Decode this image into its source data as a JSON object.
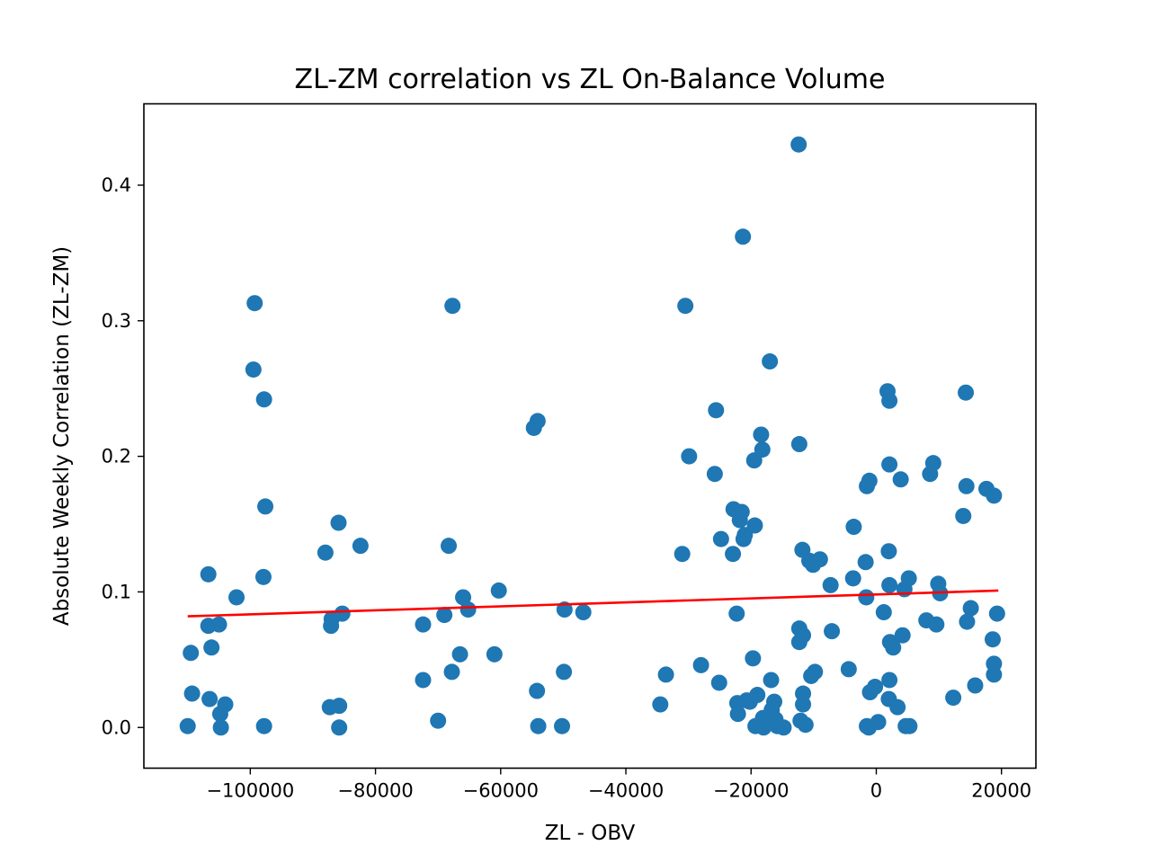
{
  "chart_data": {
    "type": "scatter",
    "title": "ZL-ZM correlation vs ZL On-Balance Volume",
    "xlabel": "ZL - OBV",
    "ylabel": "Absolute Weekly Correlation (ZL-ZM)",
    "xlim": [
      -117000,
      25500
    ],
    "ylim": [
      -0.03,
      0.46
    ],
    "xticks": [
      -100000,
      -80000,
      -60000,
      -40000,
      -20000,
      0,
      20000
    ],
    "xtick_labels": [
      "−100000",
      "−80000",
      "−60000",
      "−40000",
      "−20000",
      "0",
      "20000"
    ],
    "yticks": [
      0.0,
      0.1,
      0.2,
      0.3,
      0.4
    ],
    "ytick_labels": [
      "0.0",
      "0.1",
      "0.2",
      "0.3",
      "0.4"
    ],
    "grid": false,
    "marker_color": "#1f77b4",
    "trendline_color": "#ff0000",
    "trendline": {
      "x": [
        -110000,
        19500
      ],
      "y": [
        0.082,
        0.101
      ]
    },
    "points": [
      [
        -110000,
        0.001
      ],
      [
        -109500,
        0.055
      ],
      [
        -109300,
        0.025
      ],
      [
        -106700,
        0.113
      ],
      [
        -106700,
        0.075
      ],
      [
        -106500,
        0.021
      ],
      [
        -106200,
        0.059
      ],
      [
        -105000,
        0.076
      ],
      [
        -104800,
        0.01
      ],
      [
        -104700,
        0.0
      ],
      [
        -104000,
        0.017
      ],
      [
        -102200,
        0.096
      ],
      [
        -99300,
        0.313
      ],
      [
        -99500,
        0.264
      ],
      [
        -97800,
        0.242
      ],
      [
        -97600,
        0.163
      ],
      [
        -97900,
        0.111
      ],
      [
        -97800,
        0.001
      ],
      [
        -88000,
        0.129
      ],
      [
        -87300,
        0.015
      ],
      [
        -87100,
        0.075
      ],
      [
        -87000,
        0.08
      ],
      [
        -85900,
        0.151
      ],
      [
        -85800,
        0.016
      ],
      [
        -85800,
        0.0
      ],
      [
        -85300,
        0.084
      ],
      [
        -82400,
        0.134
      ],
      [
        -72400,
        0.076
      ],
      [
        -72400,
        0.035
      ],
      [
        -70000,
        0.005
      ],
      [
        -69000,
        0.083
      ],
      [
        -68300,
        0.134
      ],
      [
        -67700,
        0.311
      ],
      [
        -67800,
        0.041
      ],
      [
        -66500,
        0.054
      ],
      [
        -66000,
        0.096
      ],
      [
        -65200,
        0.087
      ],
      [
        -61000,
        0.054
      ],
      [
        -60300,
        0.101
      ],
      [
        -54700,
        0.221
      ],
      [
        -54100,
        0.226
      ],
      [
        -54200,
        0.027
      ],
      [
        -54000,
        0.001
      ],
      [
        -50200,
        0.001
      ],
      [
        -49900,
        0.041
      ],
      [
        -49800,
        0.087
      ],
      [
        -46800,
        0.085
      ],
      [
        -34500,
        0.017
      ],
      [
        -33600,
        0.039
      ],
      [
        -31000,
        0.128
      ],
      [
        -30500,
        0.311
      ],
      [
        -29900,
        0.2
      ],
      [
        -28000,
        0.046
      ],
      [
        -25800,
        0.187
      ],
      [
        -25600,
        0.234
      ],
      [
        -25100,
        0.033
      ],
      [
        -24800,
        0.139
      ],
      [
        -22900,
        0.128
      ],
      [
        -22800,
        0.161
      ],
      [
        -22300,
        0.084
      ],
      [
        -22200,
        0.018
      ],
      [
        -22100,
        0.01
      ],
      [
        -21800,
        0.153
      ],
      [
        -21500,
        0.159
      ],
      [
        -21200,
        0.139
      ],
      [
        -21300,
        0.362
      ],
      [
        -21000,
        0.142
      ],
      [
        -20700,
        0.02
      ],
      [
        -20200,
        0.019
      ],
      [
        -19700,
        0.051
      ],
      [
        -19500,
        0.197
      ],
      [
        -19400,
        0.149
      ],
      [
        -19300,
        0.001
      ],
      [
        -19000,
        0.024
      ],
      [
        -18400,
        0.216
      ],
      [
        -18200,
        0.205
      ],
      [
        -18100,
        0.007
      ],
      [
        -18000,
        0.0
      ],
      [
        -17600,
        0.005
      ],
      [
        -17000,
        0.27
      ],
      [
        -16800,
        0.035
      ],
      [
        -16700,
        0.013
      ],
      [
        -16500,
        0.003
      ],
      [
        -16300,
        0.019
      ],
      [
        -16100,
        0.006
      ],
      [
        -15800,
        0.001
      ],
      [
        -14800,
        0.0
      ],
      [
        -12400,
        0.43
      ],
      [
        -12300,
        0.209
      ],
      [
        -12300,
        0.073
      ],
      [
        -12300,
        0.063
      ],
      [
        -12100,
        0.005
      ],
      [
        -11800,
        0.131
      ],
      [
        -11700,
        0.068
      ],
      [
        -11700,
        0.025
      ],
      [
        -11700,
        0.017
      ],
      [
        -11300,
        0.002
      ],
      [
        -10700,
        0.123
      ],
      [
        -10400,
        0.038
      ],
      [
        -10100,
        0.12
      ],
      [
        -9800,
        0.041
      ],
      [
        -9000,
        0.124
      ],
      [
        -7300,
        0.105
      ],
      [
        -7100,
        0.071
      ],
      [
        -4400,
        0.043
      ],
      [
        -3600,
        0.148
      ],
      [
        -3700,
        0.11
      ],
      [
        -1700,
        0.122
      ],
      [
        -1600,
        0.096
      ],
      [
        -1500,
        0.178
      ],
      [
        -1100,
        0.182
      ],
      [
        -1500,
        0.001
      ],
      [
        -1200,
        0.0
      ],
      [
        -1000,
        0.026
      ],
      [
        -200,
        0.03
      ],
      [
        300,
        0.004
      ],
      [
        1200,
        0.085
      ],
      [
        1800,
        0.248
      ],
      [
        2000,
        0.13
      ],
      [
        2100,
        0.241
      ],
      [
        2100,
        0.194
      ],
      [
        2100,
        0.105
      ],
      [
        2200,
        0.063
      ],
      [
        2100,
        0.035
      ],
      [
        2000,
        0.021
      ],
      [
        2700,
        0.059
      ],
      [
        3400,
        0.015
      ],
      [
        3900,
        0.183
      ],
      [
        4200,
        0.068
      ],
      [
        4500,
        0.102
      ],
      [
        4700,
        0.001
      ],
      [
        5200,
        0.11
      ],
      [
        5300,
        0.001
      ],
      [
        8000,
        0.079
      ],
      [
        8600,
        0.187
      ],
      [
        9100,
        0.195
      ],
      [
        9600,
        0.076
      ],
      [
        9900,
        0.106
      ],
      [
        10200,
        0.099
      ],
      [
        12300,
        0.022
      ],
      [
        13900,
        0.156
      ],
      [
        14300,
        0.247
      ],
      [
        14400,
        0.178
      ],
      [
        14500,
        0.078
      ],
      [
        15100,
        0.088
      ],
      [
        15800,
        0.031
      ],
      [
        17600,
        0.176
      ],
      [
        18600,
        0.065
      ],
      [
        18800,
        0.047
      ],
      [
        18800,
        0.039
      ],
      [
        18800,
        0.171
      ],
      [
        19300,
        0.084
      ]
    ]
  }
}
